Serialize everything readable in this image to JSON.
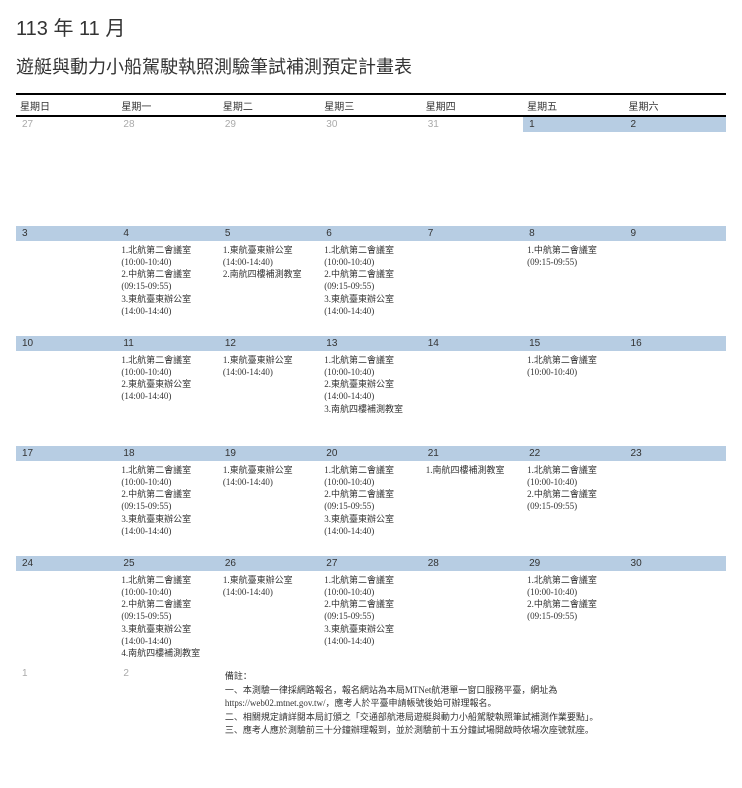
{
  "header": {
    "month_line": "113 年 11 月",
    "title": "遊艇與動力小船駕駛執照測驗筆試補測預定計畫表"
  },
  "weekdays": [
    "星期日",
    "星期一",
    "星期二",
    "星期三",
    "星期四",
    "星期五",
    "星期六"
  ],
  "weeks": [
    {
      "short": true,
      "days": [
        {
          "num": "27",
          "in": false,
          "events": []
        },
        {
          "num": "28",
          "in": false,
          "events": []
        },
        {
          "num": "29",
          "in": false,
          "events": []
        },
        {
          "num": "30",
          "in": false,
          "events": []
        },
        {
          "num": "31",
          "in": false,
          "events": []
        },
        {
          "num": "1",
          "in": true,
          "events": []
        },
        {
          "num": "2",
          "in": true,
          "events": []
        }
      ]
    },
    {
      "days": [
        {
          "num": "3",
          "in": true,
          "events": []
        },
        {
          "num": "4",
          "in": true,
          "events": [
            "1.北航第二會議室",
            "(10:00-10:40)",
            "2.中航第二會議室",
            "(09:15-09:55)",
            "3.東航臺東辦公室",
            "(14:00-14:40)"
          ]
        },
        {
          "num": "5",
          "in": true,
          "events": [
            "1.東航臺東辦公室",
            "(14:00-14:40)",
            "2.南航四樓補測教室"
          ]
        },
        {
          "num": "6",
          "in": true,
          "events": [
            "1.北航第二會議室",
            "(10:00-10:40)",
            "2.中航第二會議室",
            "(09:15-09:55)",
            "3.東航臺東辦公室",
            "(14:00-14:40)"
          ]
        },
        {
          "num": "7",
          "in": true,
          "events": []
        },
        {
          "num": "8",
          "in": true,
          "events": [
            "1.中航第二會議室",
            "(09:15-09:55)"
          ]
        },
        {
          "num": "9",
          "in": true,
          "events": []
        }
      ]
    },
    {
      "days": [
        {
          "num": "10",
          "in": true,
          "events": []
        },
        {
          "num": "11",
          "in": true,
          "events": [
            "1.北航第二會議室",
            "(10:00-10:40)",
            "2.東航臺東辦公室",
            "(14:00-14:40)"
          ]
        },
        {
          "num": "12",
          "in": true,
          "events": [
            "1.東航臺東辦公室",
            "(14:00-14:40)"
          ]
        },
        {
          "num": "13",
          "in": true,
          "events": [
            "1.北航第二會議室",
            "(10:00-10:40)",
            "2.東航臺東辦公室",
            "(14:00-14:40)",
            "3.南航四樓補測教室"
          ]
        },
        {
          "num": "14",
          "in": true,
          "events": []
        },
        {
          "num": "15",
          "in": true,
          "events": [
            "1.北航第二會議室",
            "(10:00-10:40)"
          ]
        },
        {
          "num": "16",
          "in": true,
          "events": []
        }
      ]
    },
    {
      "days": [
        {
          "num": "17",
          "in": true,
          "events": []
        },
        {
          "num": "18",
          "in": true,
          "events": [
            "1.北航第二會議室",
            "(10:00-10:40)",
            "2.中航第二會議室",
            "(09:15-09:55)",
            "3.東航臺東辦公室",
            "(14:00-14:40)"
          ]
        },
        {
          "num": "19",
          "in": true,
          "events": [
            "1.東航臺東辦公室",
            "(14:00-14:40)"
          ]
        },
        {
          "num": "20",
          "in": true,
          "events": [
            "1.北航第二會議室",
            "(10:00-10:40)",
            "2.中航第二會議室",
            "(09:15-09:55)",
            "3.東航臺東辦公室",
            "(14:00-14:40)"
          ]
        },
        {
          "num": "21",
          "in": true,
          "events": [
            "1.南航四樓補測教室"
          ]
        },
        {
          "num": "22",
          "in": true,
          "events": [
            "1.北航第二會議室",
            "(10:00-10:40)",
            "2.中航第二會議室",
            "(09:15-09:55)"
          ]
        },
        {
          "num": "23",
          "in": true,
          "events": []
        }
      ]
    },
    {
      "days": [
        {
          "num": "24",
          "in": true,
          "events": []
        },
        {
          "num": "25",
          "in": true,
          "events": [
            "1.北航第二會議室",
            "(10:00-10:40)",
            "2.中航第二會議室",
            "(09:15-09:55)",
            "3.東航臺東辦公室",
            "(14:00-14:40)",
            "4.南航四樓補測教室"
          ]
        },
        {
          "num": "26",
          "in": true,
          "events": [
            "1.東航臺東辦公室",
            "(14:00-14:40)"
          ]
        },
        {
          "num": "27",
          "in": true,
          "events": [
            "1.北航第二會議室",
            "(10:00-10:40)",
            "2.中航第二會議室",
            "(09:15-09:55)",
            "3.東航臺東辦公室",
            "(14:00-14:40)"
          ]
        },
        {
          "num": "28",
          "in": true,
          "events": []
        },
        {
          "num": "29",
          "in": true,
          "events": [
            "1.北航第二會議室",
            "(10:00-10:40)",
            "2.中航第二會議室",
            "(09:15-09:55)"
          ]
        },
        {
          "num": "30",
          "in": true,
          "events": []
        }
      ]
    }
  ],
  "footer": {
    "days": [
      {
        "num": "1",
        "in": false
      },
      {
        "num": "2",
        "in": false
      }
    ],
    "notes": [
      "備註：",
      "一、本測驗一律採網路報名，報名網站為本局MTNet航港單一窗口服務平臺，網址為",
      "https://web02.mtnet.gov.tw/，應考人於平臺申請帳號後始可辦理報名。",
      "二、相關規定請詳閱本局訂頒之「交通部航港局遊艇與動力小船駕駛執照筆試補測作業要點」。",
      "三、應考人應於測驗前三十分鐘辦理報到，並於測驗前十五分鐘試場開啟時依場次座號就座。"
    ]
  },
  "colors": {
    "header_bg": "#b7cde3",
    "text": "#333333",
    "muted": "#aaaaaa"
  }
}
